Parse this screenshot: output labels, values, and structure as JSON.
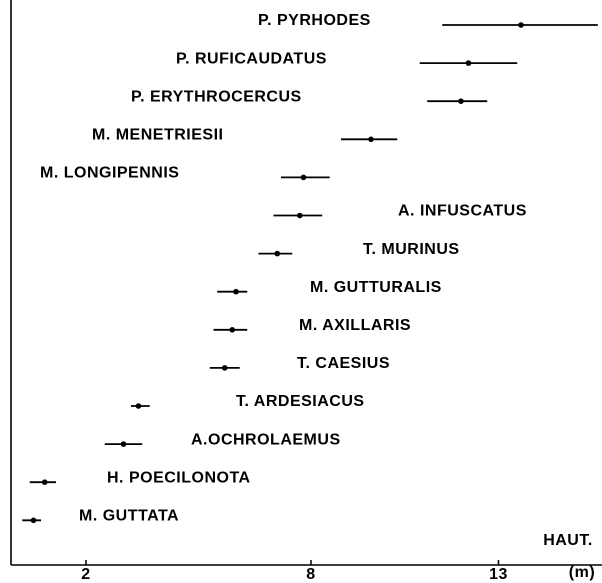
{
  "chart_data": {
    "type": "range",
    "categories": [
      "P. PYRHODES",
      "P. RUFICAUDATUS",
      "P. ERYTHROCERCUS",
      "M. MENETRIESII",
      "M. LONGIPENNIS",
      "A. INFUSCATUS",
      "T. MURINUS",
      "M. GUTTURALIS",
      "M. AXILLARIS",
      "T. CAESIUS",
      "T. ARDESIACUS",
      "A.OCHROLAEMUS",
      "H. POECILONOTA",
      "M. GUTTATA"
    ],
    "low": [
      11.5,
      10.9,
      11.1,
      8.8,
      7.2,
      7.0,
      6.6,
      5.5,
      5.4,
      5.3,
      3.2,
      2.5,
      0.5,
      0.3
    ],
    "high": [
      15.65,
      13.5,
      12.7,
      10.3,
      8.5,
      8.3,
      7.5,
      6.3,
      6.3,
      6.1,
      3.7,
      3.5,
      1.2,
      0.8
    ],
    "values": [
      13.6,
      12.2,
      12.0,
      9.6,
      7.8,
      7.7,
      7.1,
      6.0,
      5.9,
      5.7,
      3.4,
      3.0,
      0.9,
      0.6
    ],
    "color": "#000000",
    "xlabel": "HAUT.",
    "xunit": "(m)",
    "xlim": [
      0,
      15.75
    ],
    "xticks": [
      2,
      8,
      13
    ]
  }
}
